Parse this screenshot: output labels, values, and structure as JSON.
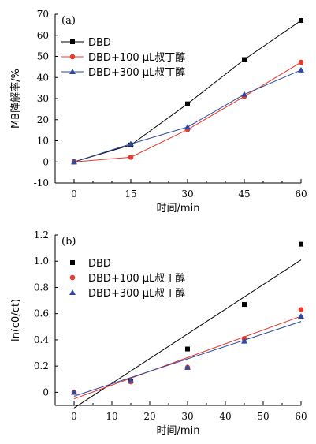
{
  "chart_data": [
    {
      "type": "line",
      "panel_label": "(a)",
      "xlabel": "时间/min",
      "ylabel": "MB降解率/%",
      "xlim": [
        -5,
        60
      ],
      "ylim": [
        -10,
        70
      ],
      "xticks": [
        0,
        15,
        30,
        45,
        60
      ],
      "yticks": [
        -10,
        0,
        10,
        20,
        30,
        40,
        50,
        60,
        70
      ],
      "x": [
        0,
        15,
        30,
        45,
        60
      ],
      "legend_position": "top-left",
      "series": [
        {
          "name": "DBD",
          "color": "#000000",
          "marker": "square",
          "values": [
            0,
            8,
            27.5,
            48.5,
            67
          ]
        },
        {
          "name": "DBD+100 μL叔丁醇",
          "color": "#e8392b",
          "marker": "circle",
          "values": [
            0,
            2.2,
            15.3,
            31,
            47.2
          ]
        },
        {
          "name": "DBD+300 μL叔丁醇",
          "color": "#2e4a9e",
          "marker": "triangle",
          "values": [
            0,
            8.5,
            16.5,
            32,
            43.5
          ]
        }
      ]
    },
    {
      "type": "scatter",
      "panel_label": "(b)",
      "xlabel": "时间/min",
      "ylabel": "ln(c0/ct)",
      "xlim": [
        -5,
        60
      ],
      "ylim": [
        -0.1,
        1.2
      ],
      "xticks": [
        0,
        10,
        20,
        30,
        40,
        50,
        60
      ],
      "yticks": [
        0,
        0.2,
        0.4,
        0.6,
        0.8,
        1.0,
        1.2
      ],
      "ytick_labels": [
        "0",
        "0.2",
        "0.4",
        "0.6",
        "0.8",
        "1.0",
        "1.2"
      ],
      "x": [
        0,
        15,
        30,
        45,
        60
      ],
      "legend_position": "top-left",
      "series": [
        {
          "name": "DBD",
          "color": "#000000",
          "marker": "square",
          "values": [
            0,
            0.085,
            0.33,
            0.67,
            1.13
          ],
          "fit_line": [
            [
              0,
              -0.12
            ],
            [
              60,
              1.01
            ]
          ]
        },
        {
          "name": "DBD+100 μL叔丁醇",
          "color": "#e8392b",
          "marker": "circle",
          "values": [
            0,
            0.08,
            0.19,
            0.41,
            0.63
          ],
          "fit_line": [
            [
              0,
              -0.05
            ],
            [
              60,
              0.58
            ]
          ]
        },
        {
          "name": "DBD+300 μL叔丁醇",
          "color": "#2e4a9e",
          "marker": "triangle",
          "values": [
            0,
            0.09,
            0.19,
            0.39,
            0.58
          ],
          "fit_line": [
            [
              0,
              -0.03
            ],
            [
              60,
              0.54
            ]
          ]
        }
      ]
    }
  ]
}
